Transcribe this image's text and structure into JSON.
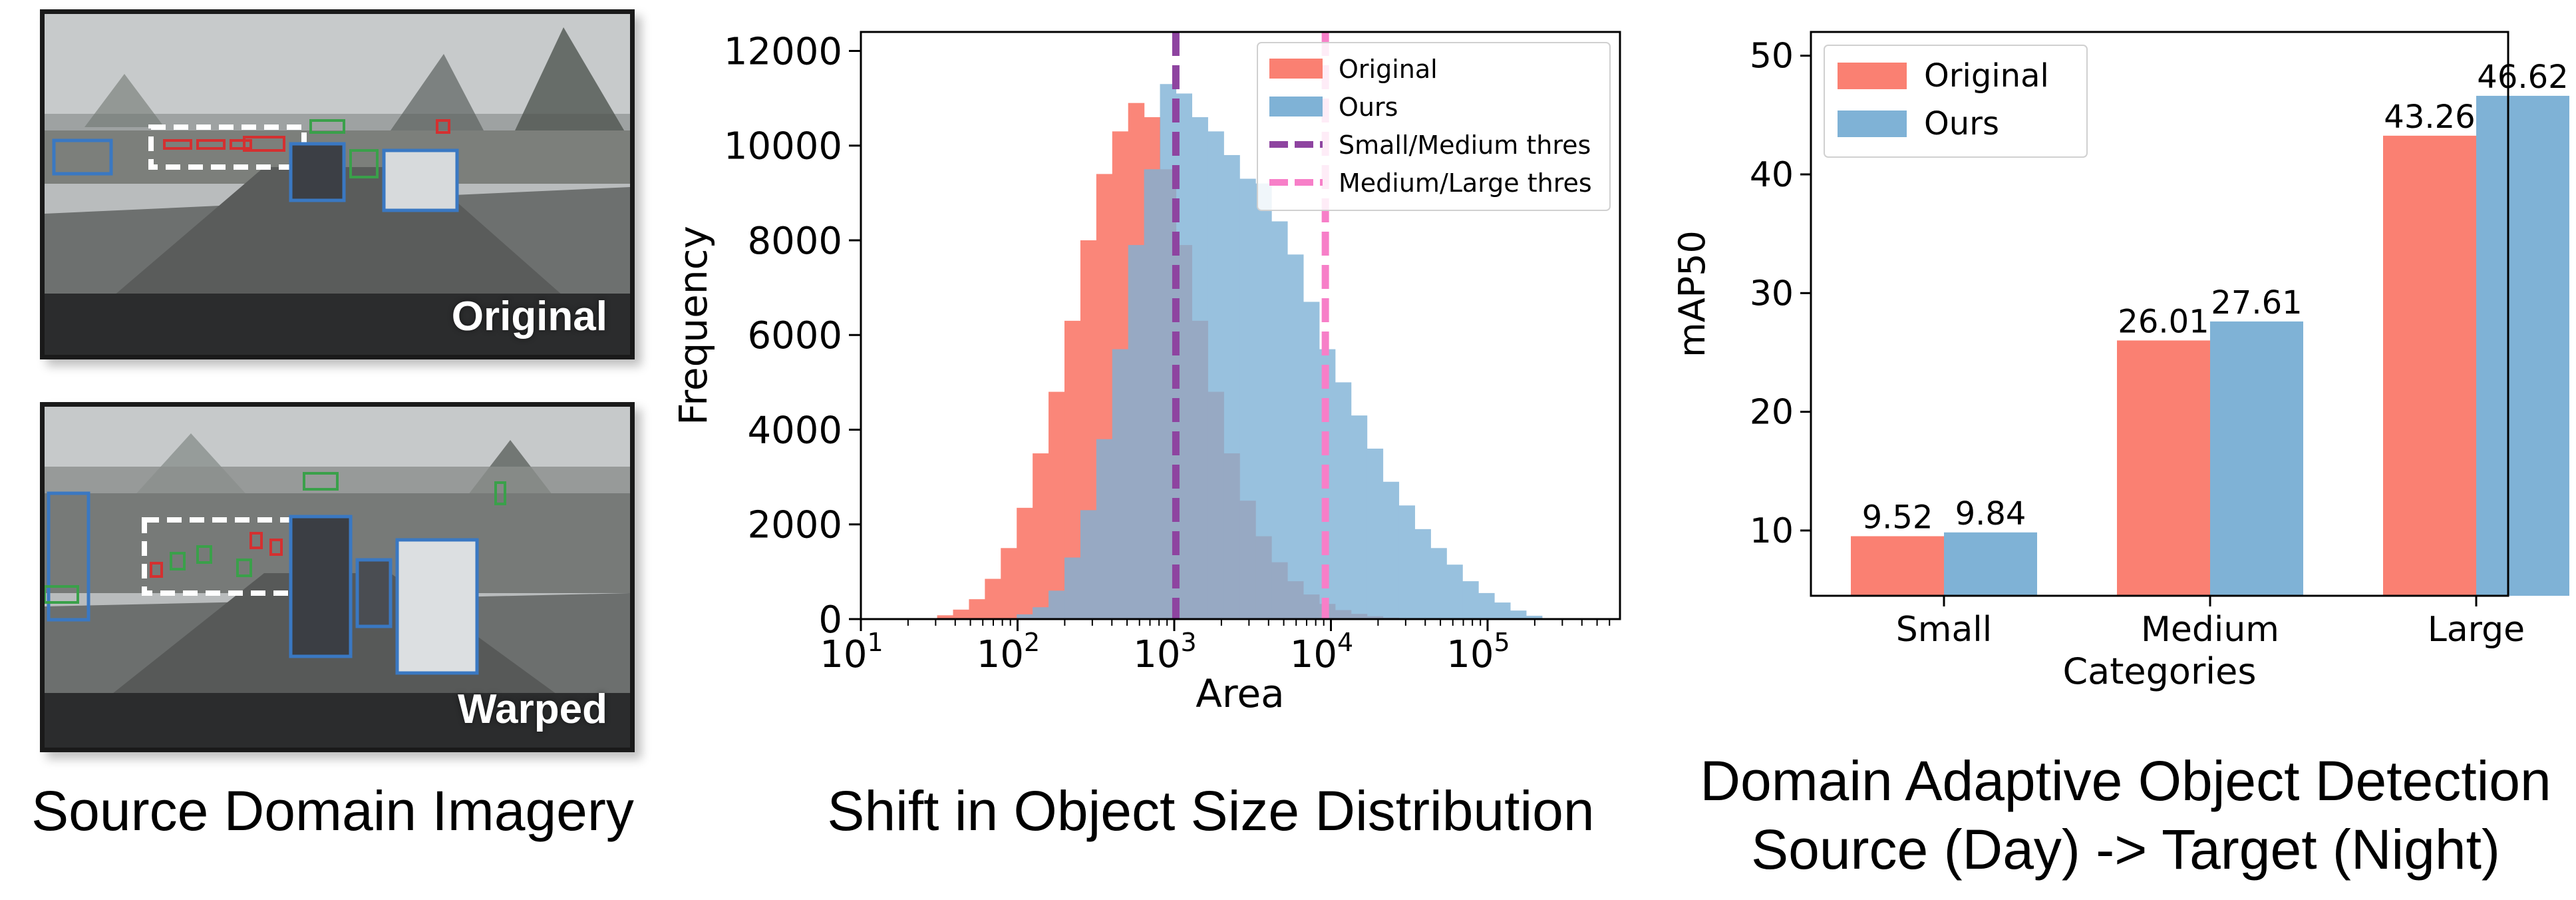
{
  "panels": {
    "imagery": {
      "caption": "Source Domain Imagery",
      "images": [
        {
          "label": "Original"
        },
        {
          "label": "Warped"
        }
      ]
    },
    "histogram": {
      "caption": "Shift in Object Size Distribution"
    },
    "bar": {
      "caption_lines": [
        "Domain Adaptive Object Detection",
        "Source (Day) -> Target (Night)"
      ]
    }
  },
  "colors": {
    "original": "#fa8072",
    "ours": "#7fb2d6",
    "small_thres": "#8e44a0",
    "large_thres": "#f77fc8"
  },
  "chart_data": [
    {
      "type": "area",
      "xlabel": "Area",
      "ylabel": "Frequency",
      "x_scale": "log",
      "xlim": [
        10,
        700000
      ],
      "ylim": [
        0,
        12400
      ],
      "x_ticks": [
        {
          "exp": "1",
          "value": 10
        },
        {
          "exp": "2",
          "value": 100
        },
        {
          "exp": "3",
          "value": 1000
        },
        {
          "exp": "4",
          "value": 10000
        },
        {
          "exp": "5",
          "value": 100000
        }
      ],
      "x_tick_base": "10",
      "y_ticks": [
        0,
        2000,
        4000,
        6000,
        8000,
        10000,
        12000
      ],
      "y_tick_labels": [
        "0",
        "2000",
        "4000",
        "6000",
        "8000",
        "10000",
        "12000"
      ],
      "bin_log_start": 1.385,
      "bin_log_width": 0.1016,
      "series": [
        {
          "name": "Original",
          "color": "#fa8072",
          "values": [
            20,
            80,
            200,
            420,
            850,
            1500,
            2350,
            3500,
            4800,
            6300,
            8000,
            9400,
            10300,
            10900,
            10600,
            9500,
            7900,
            6300,
            4800,
            3500,
            2500,
            1750,
            1200,
            800,
            520,
            320,
            190,
            110,
            60,
            30,
            15,
            6,
            2,
            0,
            0,
            0,
            0,
            0,
            0,
            0
          ]
        },
        {
          "name": "Ours",
          "color": "#7fb2d6",
          "values": [
            0,
            0,
            0,
            0,
            0,
            20,
            100,
            250,
            600,
            1300,
            2300,
            3800,
            5700,
            7900,
            9500,
            11300,
            11100,
            10600,
            10300,
            9800,
            9300,
            9200,
            8400,
            7700,
            6700,
            5700,
            5000,
            4300,
            3600,
            2900,
            2400,
            1900,
            1500,
            1150,
            800,
            550,
            350,
            180,
            70,
            0
          ]
        }
      ],
      "lines": [
        {
          "name": "Small/Medium thres",
          "x": 1024,
          "color": "#8e44a0"
        },
        {
          "name": "Medium/Large thres",
          "x": 9216,
          "color": "#f77fc8"
        }
      ],
      "legend_position": "top-right",
      "legend": [
        "Original",
        "Ours",
        "Small/Medium thres",
        "Medium/Large thres"
      ]
    },
    {
      "type": "bar",
      "xlabel": "Categories",
      "ylabel": "mAP50",
      "categories": [
        "Small",
        "Medium",
        "Large"
      ],
      "ylim": [
        4.5,
        52
      ],
      "y_ticks": [
        10,
        20,
        30,
        40,
        50
      ],
      "y_tick_labels": [
        "10",
        "20",
        "30",
        "40",
        "50"
      ],
      "series": [
        {
          "name": "Original",
          "color": "#fa8072",
          "values": [
            9.52,
            26.01,
            43.26
          ],
          "labels": [
            "9.52",
            "26.01",
            "43.26"
          ]
        },
        {
          "name": "Ours",
          "color": "#7fb2d6",
          "values": [
            9.84,
            27.61,
            46.62
          ],
          "labels": [
            "9.84",
            "27.61",
            "46.62"
          ]
        }
      ],
      "legend_position": "top-left"
    }
  ]
}
